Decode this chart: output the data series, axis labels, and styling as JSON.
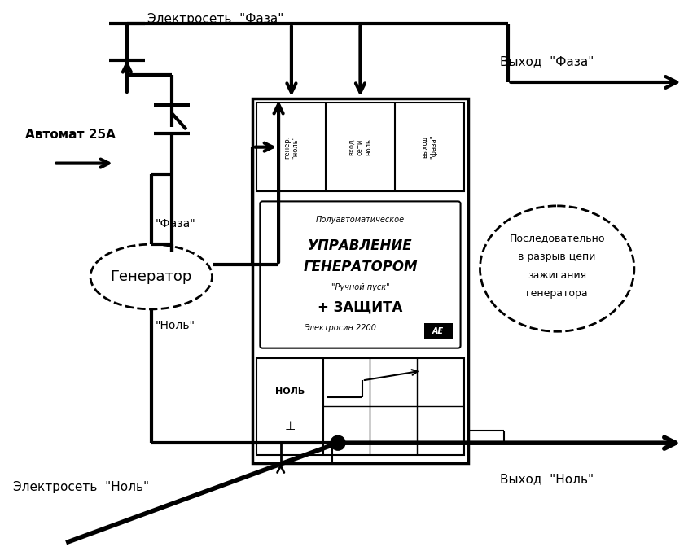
{
  "bg_color": "#ffffff",
  "texts": {
    "electro_phase": "Электросеть  \"Фаза\"",
    "output_phase": "Выход  \"Фаза\"",
    "avtomat": "Автомат 25А",
    "generator_label": "Генератор",
    "faza_label": "\"Фаза\"",
    "nol_label": "\"Ноль\"",
    "electro_nol": "Электросеть  \"Ноль\"",
    "output_nol": "Выход  \"Ноль\"",
    "terminal_nol": "НОЛЬ",
    "rb1": "Последовательно",
    "rb2": "в разрыв цепи",
    "rb3": "зажигания",
    "rb4": "генератора",
    "dev_small": "Полуавтоматическое",
    "dev_line1": "УПРАВЛЕНИЕ",
    "dev_line2": "ГЕНЕРАТОРОМ",
    "dev_sub": "\"Ручной пуск\"",
    "dev_plus": "+ ЗАЩИТА",
    "dev_brand": "Электросин 2200"
  }
}
